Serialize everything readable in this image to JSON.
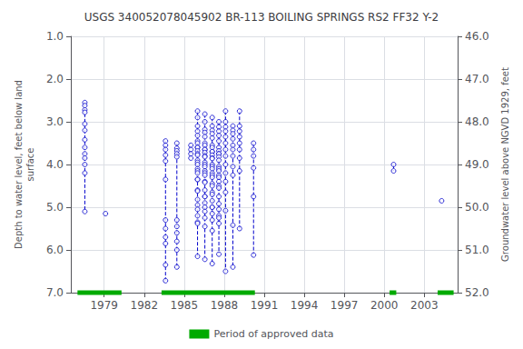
{
  "chart_data": {
    "type": "scatter",
    "title": "USGS 340052078045902 BR-113 BOILING SPRINGS RS2 FF32 Y-2",
    "ylabel": "Depth to water level, feet below land\nsurface",
    "y2label": "Groundwater level above NGVD 1929, feet",
    "xlim": [
      1976.5,
      2005.5
    ],
    "xticks": [
      1979,
      1982,
      1985,
      1988,
      1991,
      1994,
      1997,
      2000,
      2003
    ],
    "ylim": [
      7.0,
      1.0
    ],
    "yticks": [
      {
        "value": 1,
        "label": "1.0"
      },
      {
        "value": 2,
        "label": "2.0"
      },
      {
        "value": 3,
        "label": "3.0"
      },
      {
        "value": 4,
        "label": "4.0"
      },
      {
        "value": 5,
        "label": "5.0"
      },
      {
        "value": 6,
        "label": "6.0"
      },
      {
        "value": 7,
        "label": "7.0"
      }
    ],
    "y2lim": [
      52.0,
      46.0
    ],
    "y2ticks": [
      {
        "value": 46,
        "label": "46.0"
      },
      {
        "value": 47,
        "label": "47.0"
      },
      {
        "value": 48,
        "label": "48.0"
      },
      {
        "value": 49,
        "label": "49.0"
      },
      {
        "value": 50,
        "label": "50.0"
      },
      {
        "value": 51,
        "label": "51.0"
      },
      {
        "value": 52,
        "label": "52.0"
      }
    ],
    "grid": true,
    "legend": "bottom",
    "series": [
      {
        "type": "scatter",
        "color": "#0000cc",
        "marker": "circle",
        "line_style": "dashed",
        "clusters": [
          {
            "x": 1977.55,
            "values": [
              2.55,
              2.62,
              2.72,
              2.78,
              3.05,
              3.2,
              3.42,
              3.6,
              3.75,
              3.85,
              4.0,
              4.2,
              5.1
            ]
          },
          {
            "x": 1979.1,
            "values": [
              5.15
            ]
          },
          {
            "x": 1983.6,
            "values": [
              3.45,
              3.55,
              3.65,
              3.78,
              3.92,
              4.35,
              5.3,
              5.5,
              5.7,
              5.85,
              6.35,
              6.72
            ]
          },
          {
            "x": 1984.45,
            "values": [
              3.5,
              3.62,
              3.68,
              3.75,
              3.82,
              5.3,
              5.45,
              5.6,
              5.8,
              6.0,
              6.4
            ]
          },
          {
            "x": 1985.5,
            "values": [
              3.55,
              3.65,
              3.75,
              3.85
            ]
          },
          {
            "x": 1986.0,
            "values": [
              2.75,
              2.9,
              3.1,
              3.22,
              3.32,
              3.45,
              3.5,
              3.6,
              3.6,
              3.68,
              3.75,
              3.78,
              3.9,
              3.95,
              4.0,
              4.1,
              4.15,
              4.2,
              4.35,
              4.35,
              4.6,
              4.62,
              4.82,
              4.95,
              5.05,
              5.2,
              5.35,
              5.38,
              6.15
            ]
          },
          {
            "x": 1986.55,
            "values": [
              2.82,
              3.0,
              3.18,
              3.25,
              3.35,
              3.5,
              3.55,
              3.65,
              3.65,
              3.72,
              3.8,
              3.82,
              3.95,
              4.0,
              4.05,
              4.15,
              4.2,
              4.25,
              4.4,
              4.42,
              4.6,
              4.75,
              4.75,
              4.9,
              5.0,
              5.1,
              5.25,
              5.45,
              6.22
            ]
          },
          {
            "x": 1987.1,
            "values": [
              2.9,
              3.1,
              3.2,
              3.28,
              3.38,
              3.55,
              3.6,
              3.7,
              3.7,
              3.78,
              3.85,
              3.86,
              4.0,
              4.05,
              4.1,
              4.2,
              4.25,
              4.3,
              4.45,
              4.5,
              4.65,
              4.7,
              4.85,
              5.0,
              5.0,
              5.15,
              5.3,
              5.55,
              6.32
            ]
          },
          {
            "x": 1987.6,
            "values": [
              3.0,
              3.12,
              3.22,
              3.32,
              3.45,
              3.6,
              3.68,
              3.75,
              3.75,
              3.82,
              3.9,
              4.05,
              4.1,
              4.15,
              4.25,
              4.3,
              4.4,
              4.5,
              4.55,
              4.75,
              4.92,
              5.05,
              5.2,
              5.25,
              5.38,
              6.1
            ]
          },
          {
            "x": 1988.1,
            "values": [
              2.75,
              3.0,
              3.12,
              3.22,
              3.35,
              3.5,
              3.65,
              3.8,
              4.0,
              4.2,
              4.4,
              4.65,
              5.08,
              6.5
            ]
          },
          {
            "x": 1988.65,
            "values": [
              3.1,
              3.2,
              3.28,
              3.4,
              3.55,
              3.65,
              3.8,
              4.05,
              4.25,
              5.42,
              6.4
            ]
          },
          {
            "x": 1989.15,
            "values": [
              2.75,
              3.1,
              3.22,
              3.35,
              3.5,
              3.65,
              3.85,
              4.15,
              5.5
            ]
          },
          {
            "x": 1990.2,
            "values": [
              3.5,
              3.65,
              3.8,
              4.08,
              4.75,
              6.12
            ]
          },
          {
            "x": 2000.7,
            "values": [
              4.0,
              4.15
            ]
          },
          {
            "x": 2004.3,
            "values": [
              4.85
            ]
          }
        ]
      },
      {
        "type": "bar",
        "name": "Period of approved data",
        "color": "#00aa00",
        "periods": [
          [
            1977.0,
            1980.3
          ],
          [
            1983.3,
            1990.3
          ],
          [
            2000.4,
            2000.9
          ],
          [
            2004.0,
            2005.2
          ]
        ]
      }
    ]
  }
}
